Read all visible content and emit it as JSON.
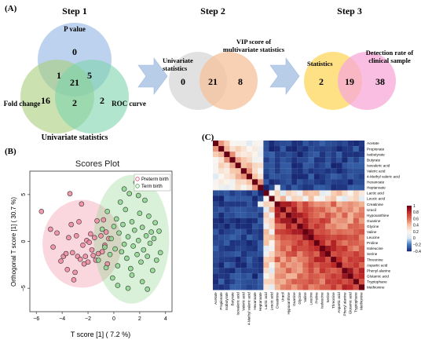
{
  "panels": {
    "a_label": "(A)",
    "b_label": "(B)",
    "c_label": "(C)"
  },
  "step1": {
    "title": "Step 1",
    "sets": [
      "P value",
      "Fold change",
      "ROC curve"
    ],
    "counts": {
      "p_only": "0",
      "fc_only": "16",
      "roc_only": "2",
      "p_fc": "1",
      "p_roc": "5",
      "fc_roc": "2",
      "all": "21"
    },
    "caption": "Univariate statistics",
    "colors": {
      "p": "#8fb4e3",
      "fc": "#a9cf7b",
      "roc": "#7fd4ad"
    }
  },
  "step2": {
    "title": "Step 2",
    "left_label": "Univariate statistics",
    "right_label": "VIP score of multivariate statistics",
    "counts": {
      "left_only": "0",
      "overlap": "21",
      "right_only": "8"
    },
    "colors": {
      "left": "#d9d9d9",
      "right": "#f5c09a"
    }
  },
  "step3": {
    "title": "Step 3",
    "left_label": "Statistics",
    "right_label": "Detection rate of clinical sample",
    "counts": {
      "left_only": "2",
      "overlap": "19",
      "right_only": "38"
    },
    "colors": {
      "left": "#ffd966",
      "right": "#f7a8d8"
    }
  },
  "chart_data": [
    {
      "type": "scatter",
      "title": "Scores Plot",
      "xlabel": "T score [1] ( 7.2 %)",
      "ylabel": "Orthogonal T score [1] ( 30.7 %)",
      "xlim": [
        -6.5,
        4.5
      ],
      "ylim": [
        -7.5,
        7.5
      ],
      "xticks": [
        -6,
        -4,
        -2,
        0,
        2,
        4
      ],
      "yticks": [
        -5,
        0,
        5
      ],
      "legend_position": "top-right",
      "series": [
        {
          "name": "Preterm birth",
          "color": "#f08aa0",
          "points": [
            [
              -5.6,
              3.2
            ],
            [
              -4.9,
              1.3
            ],
            [
              -4.7,
              -0.6
            ],
            [
              -4.4,
              0.9
            ],
            [
              -4.1,
              -2.1
            ],
            [
              -3.9,
              -1.6
            ],
            [
              -3.7,
              -1.3
            ],
            [
              -3.6,
              -3.0
            ],
            [
              -3.5,
              0.4
            ],
            [
              -3.4,
              5.1
            ],
            [
              -3.3,
              1.8
            ],
            [
              -3.2,
              -1.2
            ],
            [
              -3.1,
              -4.1
            ],
            [
              -3.0,
              -3.3
            ],
            [
              -2.9,
              0.6
            ],
            [
              -2.8,
              -1.6
            ],
            [
              -2.7,
              2.1
            ],
            [
              -2.6,
              -1.9
            ],
            [
              -2.5,
              4.0
            ],
            [
              -2.4,
              -0.4
            ],
            [
              -2.3,
              -2.4
            ],
            [
              -2.2,
              -1.6
            ],
            [
              -2.1,
              0.1
            ],
            [
              -2.0,
              -2.2
            ],
            [
              -1.9,
              -0.1
            ],
            [
              -1.8,
              0.8
            ],
            [
              -1.7,
              -0.9
            ],
            [
              -1.6,
              -1.5
            ],
            [
              -1.5,
              0.4
            ],
            [
              -1.4,
              -2.0
            ],
            [
              -1.3,
              2.2
            ],
            [
              -1.2,
              -1.3
            ],
            [
              -1.0,
              0.6
            ],
            [
              -0.9,
              -1.1
            ],
            [
              -0.8,
              2.3
            ],
            [
              -0.7,
              -0.4
            ],
            [
              -0.6,
              1.0
            ],
            [
              -0.5,
              -2.4
            ],
            [
              -0.4,
              0.3
            ]
          ]
        },
        {
          "name": "Term birth",
          "color": "#8fd68f",
          "points": [
            [
              -1.2,
              -2.0
            ],
            [
              -0.9,
              1.3
            ],
            [
              -0.7,
              -0.6
            ],
            [
              -0.5,
              3.2
            ],
            [
              -0.3,
              -1.4
            ],
            [
              -0.2,
              0.3
            ],
            [
              -0.1,
              -3.9
            ],
            [
              0.0,
              1.6
            ],
            [
              0.1,
              -0.8
            ],
            [
              0.2,
              2.4
            ],
            [
              0.3,
              -2.6
            ],
            [
              0.4,
              0.9
            ],
            [
              0.5,
              4.2
            ],
            [
              0.6,
              -1.1
            ],
            [
              0.7,
              1.8
            ],
            [
              0.8,
              -0.3
            ],
            [
              0.9,
              3.4
            ],
            [
              1.0,
              -1.8
            ],
            [
              1.1,
              0.5
            ],
            [
              1.2,
              5.1
            ],
            [
              1.3,
              -2.9
            ],
            [
              1.4,
              2.1
            ],
            [
              1.5,
              -0.5
            ],
            [
              1.6,
              1.2
            ],
            [
              1.7,
              6.3
            ],
            [
              1.8,
              -1.4
            ],
            [
              1.9,
              0.1
            ],
            [
              2.0,
              3.0
            ],
            [
              2.1,
              -2.2
            ],
            [
              2.2,
              1.5
            ],
            [
              2.3,
              -0.9
            ],
            [
              2.4,
              4.4
            ],
            [
              2.5,
              0.6
            ],
            [
              2.6,
              -1.6
            ],
            [
              2.7,
              2.7
            ],
            [
              2.8,
              -0.2
            ],
            [
              2.9,
              1.0
            ],
            [
              3.0,
              -3.1
            ],
            [
              3.1,
              0.3
            ],
            [
              3.2,
              2.0
            ],
            [
              3.5,
              1.1
            ],
            [
              3.6,
              -1.2
            ],
            [
              2.2,
              -4.3
            ],
            [
              1.4,
              -3.6
            ],
            [
              0.8,
              5.6
            ],
            [
              1.9,
              4.9
            ],
            [
              2.6,
              -5.1
            ],
            [
              1.1,
              -5.0
            ],
            [
              0.3,
              -4.7
            ],
            [
              -0.6,
              -2.8
            ],
            [
              3.3,
              -2.0
            ],
            [
              2.0,
              6.4
            ]
          ]
        }
      ]
    },
    {
      "type": "heatmap",
      "labels": [
        "Acetate",
        "Propionate",
        "Isobutyrate",
        "Butyrate",
        "Isovaleric acid",
        "Valeric acid",
        "4-Methyl valeric acid",
        "Hexanoate",
        "Heptanoate",
        "Lactic acid",
        "Leucic acid",
        "Creatinine",
        "Uracil",
        "Hypoxanthine",
        "Guanine",
        "Glycine",
        "Valine",
        "Leucine",
        "Proline",
        "Isoleucine",
        "Serine",
        "Threonine",
        "Aspartic acid",
        "Phenyl alanine",
        "Glutamic acid",
        "Tryptophane",
        "Methionine"
      ],
      "color_scale": {
        "min": -0.4,
        "max": 1,
        "ticks": [
          "1",
          "0.8",
          "0.6",
          "0.4",
          "0.2",
          "0",
          "−0.2",
          "−0.4"
        ]
      }
    }
  ]
}
